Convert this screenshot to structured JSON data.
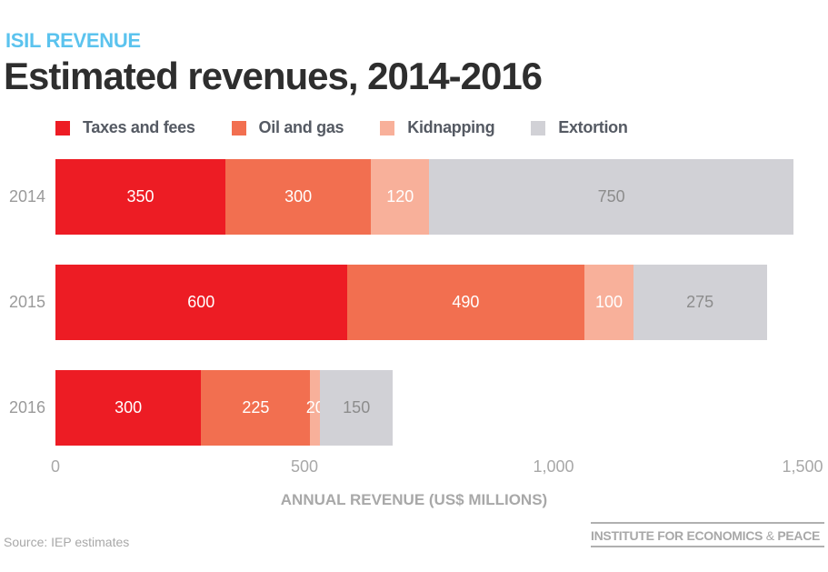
{
  "header": {
    "kicker": "ISIL REVENUE",
    "title": "Estimated revenues, 2014-2016"
  },
  "footer": {
    "source": "Source: IEP estimates",
    "org_left": "INSTITUTE FOR ECONOMICS ",
    "org_amp": "&",
    "org_right": " PEACE"
  },
  "chart_data": {
    "type": "bar",
    "orientation": "horizontal",
    "stacked": true,
    "title": "Estimated revenues, 2014-2016",
    "xlabel": "ANNUAL REVENUE (US$ MILLIONS)",
    "ylabel": "",
    "xlim": [
      0,
      1500
    ],
    "x_ticks": [
      "0",
      "500",
      "1,000",
      "1,500"
    ],
    "x_tick_values": [
      0,
      500,
      1000,
      1500
    ],
    "grid": false,
    "legend_position": "top-left",
    "categories": [
      "2014",
      "2015",
      "2016"
    ],
    "series": [
      {
        "name": "Taxes and fees",
        "color": "#ed1c24",
        "label_color": "#ffffff",
        "values": [
          350,
          600,
          300
        ]
      },
      {
        "name": "Oil and gas",
        "color": "#f26f50",
        "label_color": "#ffffff",
        "values": [
          300,
          490,
          225
        ]
      },
      {
        "name": "Kidnapping",
        "color": "#f8b09a",
        "label_color": "#ffffff",
        "values": [
          120,
          100,
          20
        ]
      },
      {
        "name": "Extortion",
        "color": "#d1d1d6",
        "label_color": "#8c8c8c",
        "values": [
          750,
          275,
          150
        ]
      }
    ]
  }
}
